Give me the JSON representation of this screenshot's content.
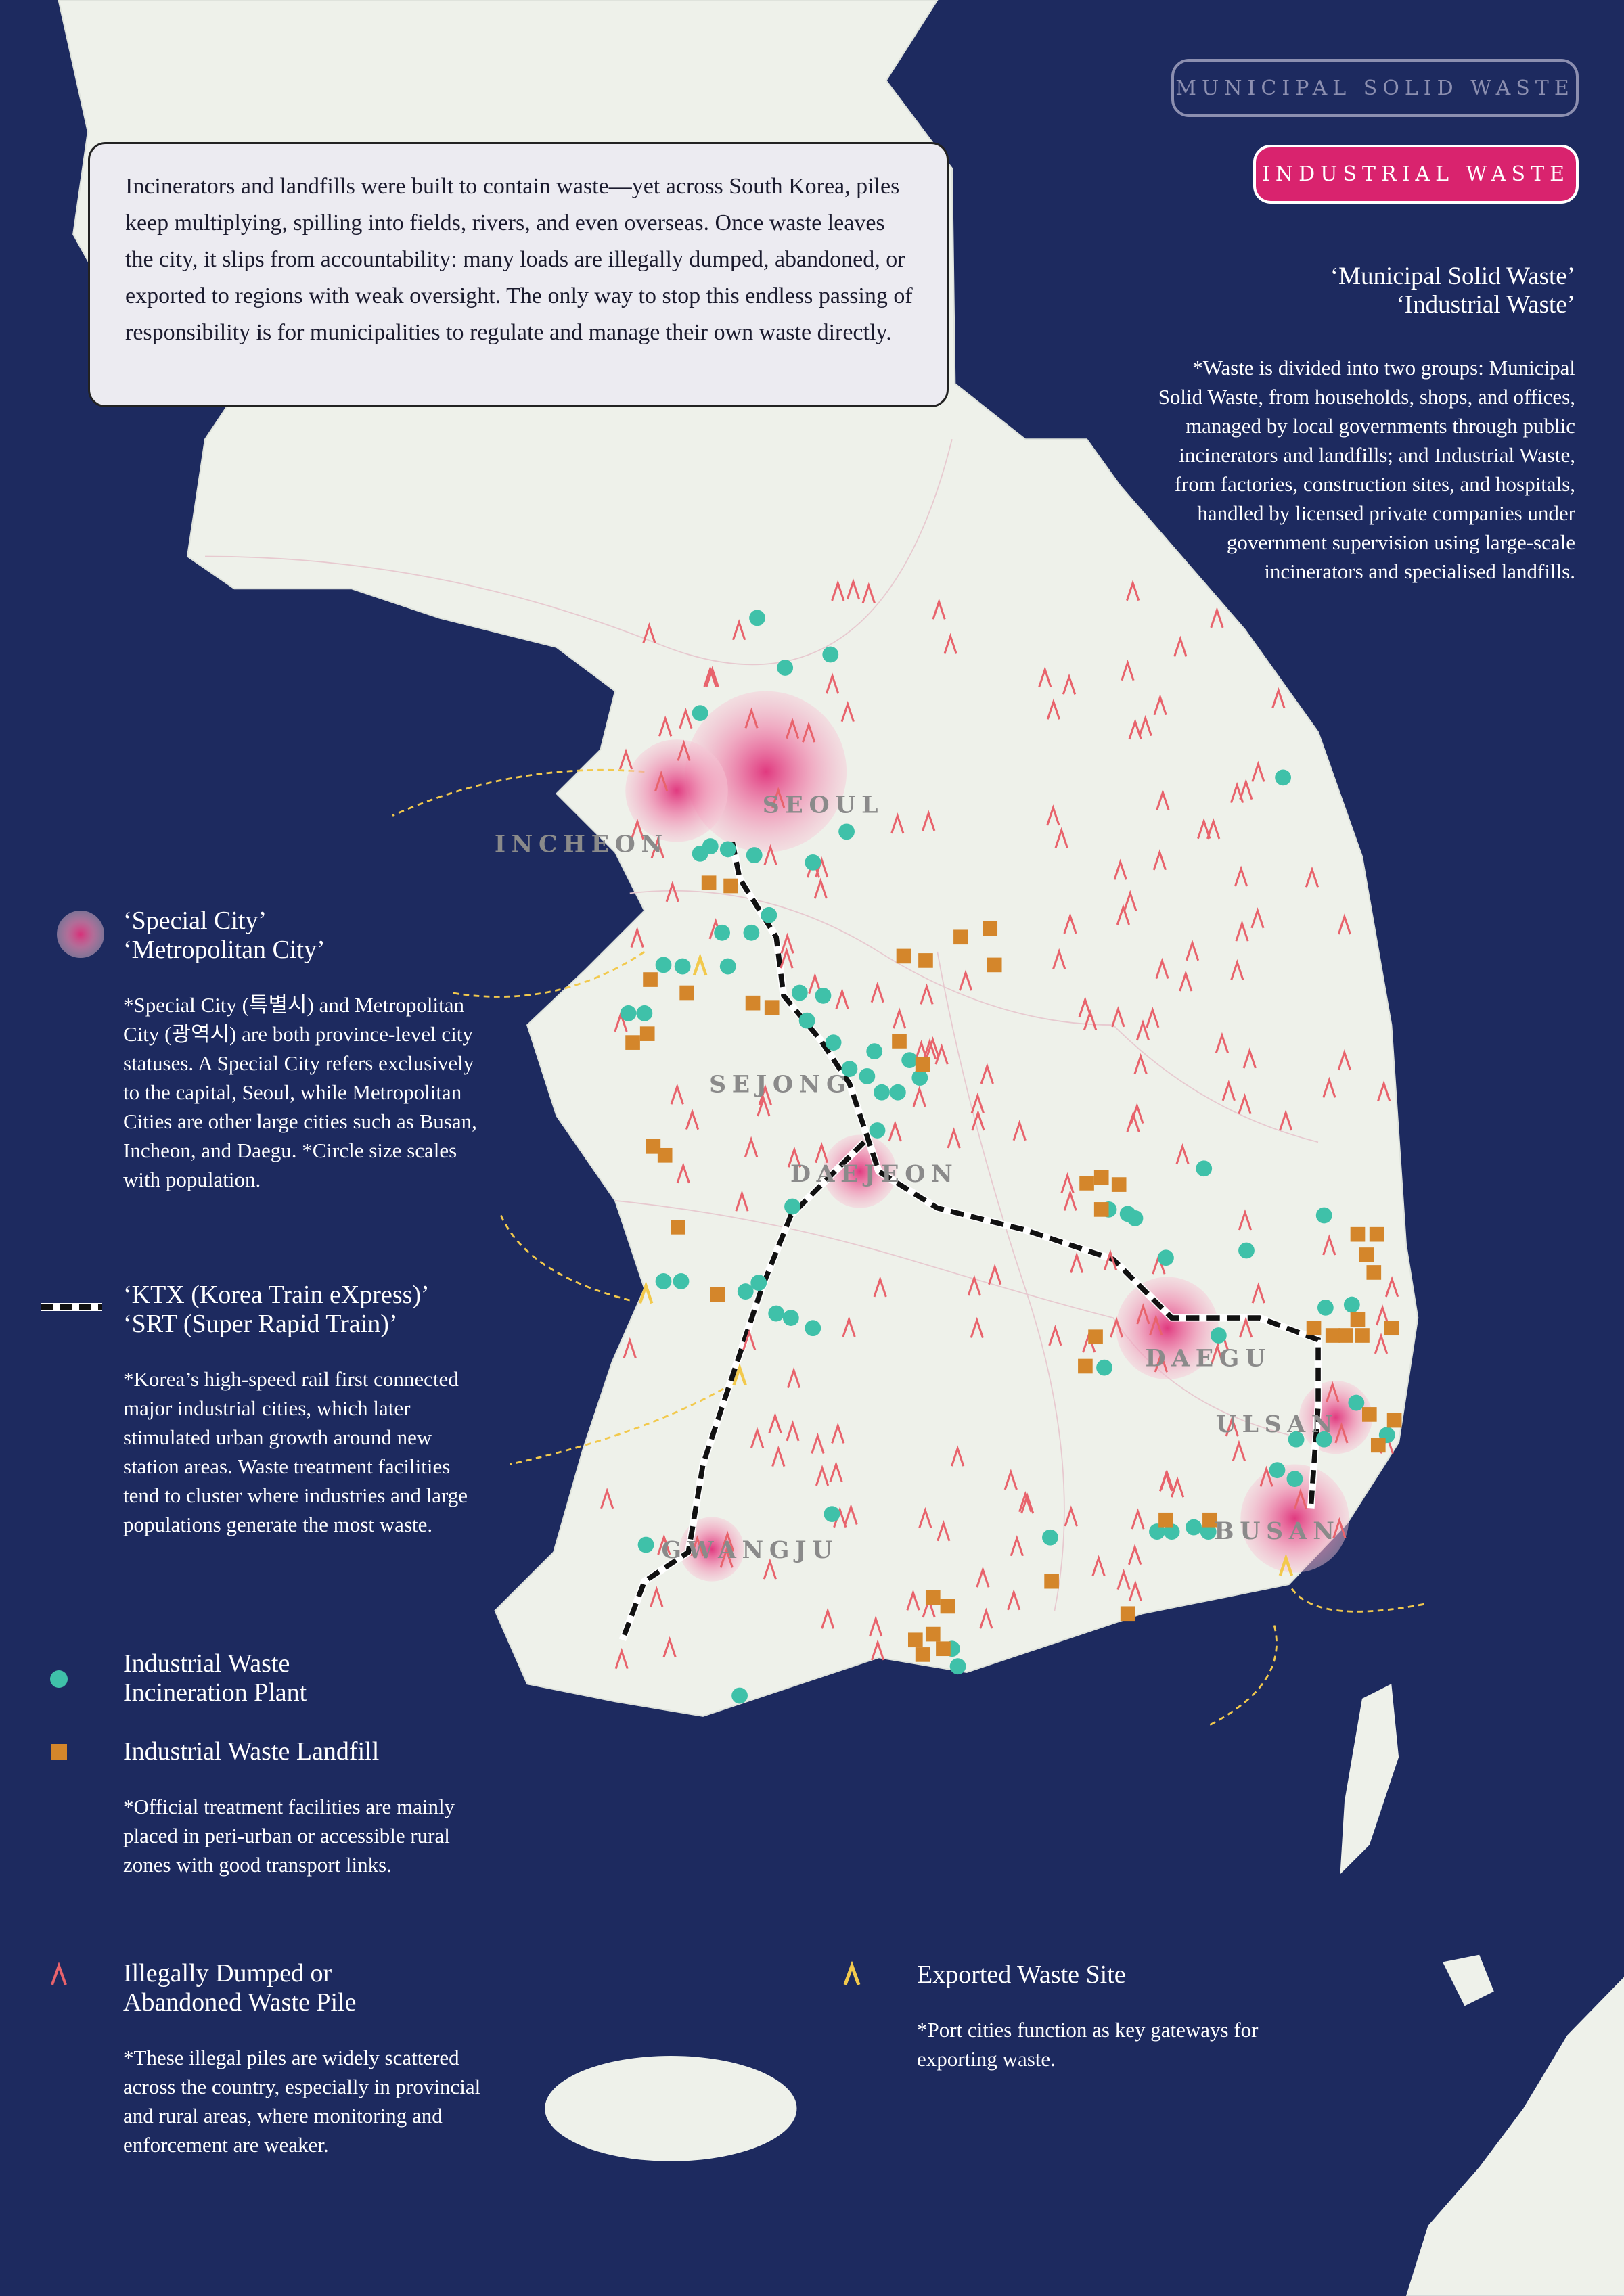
{
  "toggle_buttons": [
    "MUNICIPAL SOLID WASTE",
    "INDUSTRIAL WASTE"
  ],
  "intro": "Incinerators and landfills were built to contain waste—yet across South Korea, piles keep multiplying, spilling into fields, rivers, and even overseas. Once waste leaves the city, it slips from accountability: many loads are illegally dumped, abandoned, or exported to regions with weak oversight. The only way to stop this endless passing of responsibility is for municipalities to regulate and manage their own waste directly.",
  "overview": {
    "title": [
      "‘Municipal Solid Waste’",
      "‘Industrial Waste’"
    ],
    "note": "*Waste is divided into two groups: Municipal Solid Waste, from households, shops, and offices, managed by local governments through public incinerators and landfills; and Industrial Waste, from factories, construction sites, and hospitals, handled by licensed private companies under government supervision using large-scale incinerators and specialised landfills."
  },
  "cities": [
    "SEOUL",
    "INCHEON",
    "SEJONG",
    "DAEJEON",
    "DAEGU",
    "ULSAN",
    "BUSAN",
    "GWANGJU"
  ],
  "legend": [
    {
      "title": [
        "‘Special City’",
        "‘Metropolitan City’"
      ],
      "note": "*Special City (특별시) and Metropolitan City (광역시) are both province-level city statuses. A Special City refers exclusively to the capital, Seoul, while Metropolitan Cities are other large cities such as Busan, Incheon, and Daegu. *Circle size scales with population."
    },
    {
      "title": [
        "‘KTX (Korea Train eXpress)’",
        "‘SRT (Super Rapid Train)’"
      ],
      "note": "*Korea’s high-speed rail first connected major industrial cities, which later stimulated urban growth around new station areas. Waste treatment facilities tend to cluster where industries and large populations generate the most waste."
    },
    {
      "title": [
        "Industrial Waste",
        "Incineration Plant"
      ]
    },
    {
      "title": [
        "Industrial Waste Landfill"
      ],
      "note": "*Official treatment facilities are mainly placed in peri-urban or accessible rural zones with good transport links."
    },
    {
      "title": [
        "Illegally Dumped or",
        "Abandoned Waste Pile"
      ],
      "note": "*These illegal piles are widely scattered across the country, especially in provincial and rural areas, where monitoring and enforcement are weaker."
    },
    {
      "title": [
        "Exported Waste Site"
      ],
      "note": "*Port cities function as key gateways for exporting waste."
    }
  ]
}
